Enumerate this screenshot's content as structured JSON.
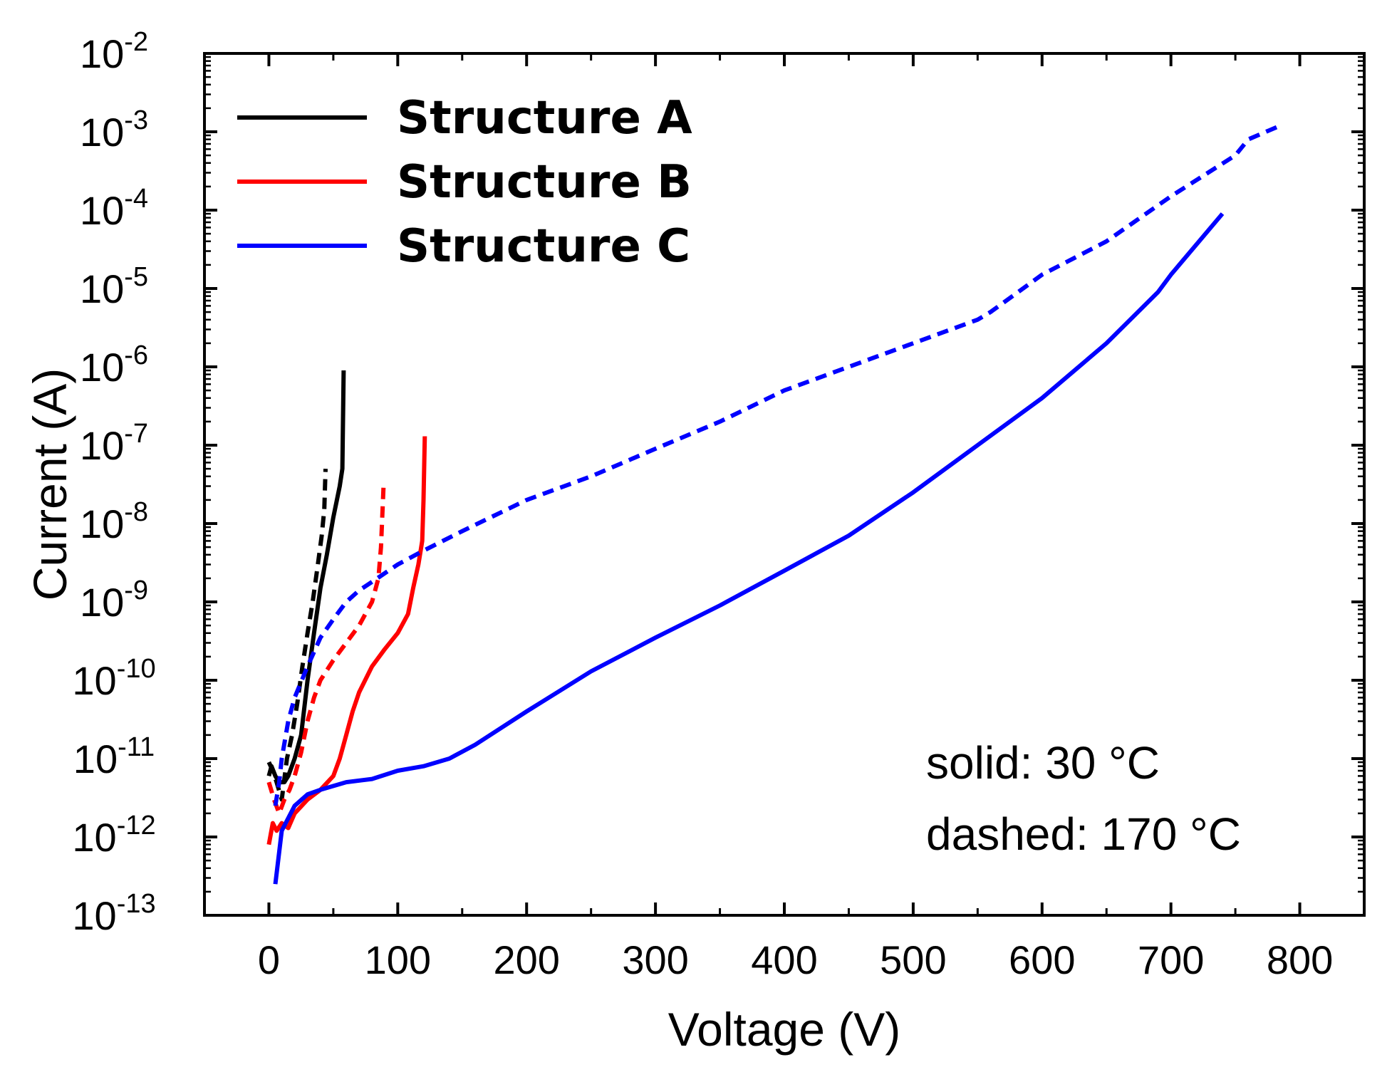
{
  "chart_data": {
    "type": "line",
    "title": "",
    "xlabel": "Voltage (V)",
    "ylabel": "Current (A)",
    "xscale": "linear",
    "yscale": "log",
    "xlim": [
      -50,
      850
    ],
    "ylim_exp": [
      -13,
      -2
    ],
    "xticks": [
      0,
      100,
      200,
      300,
      400,
      500,
      600,
      700,
      800
    ],
    "yticks": [
      {
        "exp": -2,
        "base": "10",
        "sup": "-2"
      },
      {
        "exp": -3,
        "base": "10",
        "sup": "-3"
      },
      {
        "exp": -4,
        "base": "10",
        "sup": "-4"
      },
      {
        "exp": -5,
        "base": "10",
        "sup": "-5"
      },
      {
        "exp": -6,
        "base": "10",
        "sup": "-6"
      },
      {
        "exp": -7,
        "base": "10",
        "sup": "-7"
      },
      {
        "exp": -8,
        "base": "10",
        "sup": "-8"
      },
      {
        "exp": -9,
        "base": "10",
        "sup": "-9"
      },
      {
        "exp": -10,
        "base": "10",
        "sup": "-10"
      },
      {
        "exp": -11,
        "base": "10",
        "sup": "-11"
      },
      {
        "exp": -12,
        "base": "10",
        "sup": "-12"
      },
      {
        "exp": -13,
        "base": "10",
        "sup": "-13"
      }
    ],
    "legend": [
      {
        "label": "Structure A",
        "color": "#000000"
      },
      {
        "label": "Structure B",
        "color": "#ff0000"
      },
      {
        "label": "Structure C",
        "color": "#0000ff"
      }
    ],
    "annotations": [
      "solid: 30 °C",
      "dashed: 170 °C"
    ],
    "series": [
      {
        "name": "Structure A",
        "temperature": "30 °C",
        "style": "solid",
        "color": "#000000",
        "x": [
          0,
          2,
          5,
          8,
          12,
          15,
          20,
          25,
          30,
          35,
          40,
          45,
          50,
          55,
          57,
          58
        ],
        "y": [
          6e-12,
          8e-12,
          6e-12,
          5e-12,
          5e-12,
          6e-12,
          1e-11,
          2e-11,
          1e-10,
          4e-10,
          1.5e-09,
          4e-09,
          1.2e-08,
          3e-08,
          5e-08,
          9e-07
        ]
      },
      {
        "name": "Structure A",
        "temperature": "170 °C",
        "style": "dashed",
        "color": "#000000",
        "x": [
          0,
          3,
          6,
          10,
          14,
          18,
          22,
          26,
          30,
          34,
          38,
          41,
          43,
          44
        ],
        "y": [
          9e-12,
          7e-12,
          5e-12,
          3e-12,
          1e-11,
          2e-11,
          5e-11,
          1.5e-10,
          4e-10,
          1e-09,
          3e-09,
          7e-09,
          1.5e-08,
          5e-08
        ]
      },
      {
        "name": "Structure B",
        "temperature": "30 °C",
        "style": "solid",
        "color": "#ff0000",
        "x": [
          0,
          3,
          6,
          10,
          15,
          20,
          30,
          40,
          50,
          55,
          60,
          65,
          70,
          80,
          90,
          100,
          108,
          112,
          116,
          119,
          120,
          121
        ],
        "y": [
          8e-13,
          1.5e-12,
          1.2e-12,
          1.5e-12,
          1.3e-12,
          2e-12,
          3e-12,
          4e-12,
          6e-12,
          1e-11,
          2e-11,
          4e-11,
          7e-11,
          1.5e-10,
          2.5e-10,
          4e-10,
          7e-10,
          1.5e-09,
          3e-09,
          6e-09,
          2e-08,
          1.3e-07
        ]
      },
      {
        "name": "Structure B",
        "temperature": "170 °C",
        "style": "dashed",
        "color": "#ff0000",
        "x": [
          0,
          4,
          8,
          12,
          16,
          20,
          25,
          30,
          35,
          40,
          50,
          60,
          70,
          80,
          85,
          87,
          89
        ],
        "y": [
          5e-12,
          3e-12,
          2e-12,
          3e-12,
          4e-12,
          6e-12,
          1.2e-11,
          3e-11,
          6e-11,
          1e-10,
          1.8e-10,
          3e-10,
          5e-10,
          1e-09,
          2e-09,
          5e-09,
          3e-08
        ]
      },
      {
        "name": "Structure C",
        "temperature": "30 °C",
        "style": "solid",
        "color": "#0000ff",
        "x": [
          5,
          10,
          20,
          30,
          40,
          60,
          80,
          100,
          120,
          140,
          160,
          200,
          250,
          300,
          350,
          400,
          450,
          500,
          550,
          600,
          650,
          690,
          700,
          740
        ],
        "y": [
          2.5e-13,
          1.2e-12,
          2.5e-12,
          3.5e-12,
          4e-12,
          5e-12,
          5.5e-12,
          7e-12,
          8e-12,
          1e-11,
          1.5e-11,
          4e-11,
          1.3e-10,
          3.5e-10,
          9e-10,
          2.5e-09,
          7e-09,
          2.5e-08,
          1e-07,
          4e-07,
          2e-06,
          9e-06,
          1.5e-05,
          9e-05
        ]
      },
      {
        "name": "Structure C",
        "temperature": "170 °C",
        "style": "dashed",
        "color": "#0000ff",
        "x": [
          5,
          8,
          10,
          15,
          20,
          30,
          40,
          50,
          60,
          70,
          80,
          100,
          120,
          150,
          200,
          250,
          300,
          350,
          400,
          450,
          500,
          550,
          560,
          600,
          650,
          700,
          750,
          760,
          785
        ],
        "y": [
          2.5e-12,
          5e-12,
          1e-11,
          3e-11,
          6e-11,
          1.5e-10,
          3.5e-10,
          6e-10,
          1e-09,
          1.4e-09,
          1.8e-09,
          3e-09,
          4.5e-09,
          8e-09,
          2e-08,
          4e-08,
          9e-08,
          2e-07,
          5e-07,
          1e-06,
          2e-06,
          4e-06,
          5e-06,
          1.5e-05,
          4e-05,
          0.00015,
          0.0005,
          0.0008,
          0.0012
        ]
      }
    ]
  }
}
